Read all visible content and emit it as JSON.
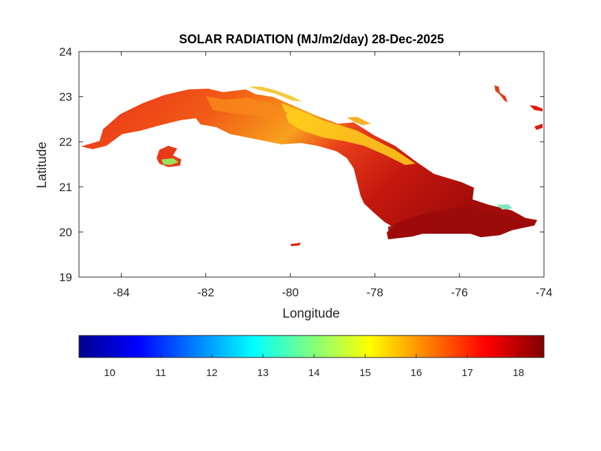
{
  "title": "SOLAR RADIATION (MJ/m2/day) 28-Dec-2025",
  "axes": {
    "xlabel": "Longitude",
    "ylabel": "Latitude",
    "xlim": [
      -85,
      -74
    ],
    "ylim": [
      19,
      24
    ],
    "xticks": [
      -84,
      -82,
      -80,
      -78,
      -76,
      -74
    ],
    "yticks": [
      19,
      20,
      21,
      22,
      23,
      24
    ]
  },
  "colorbar": {
    "colormap": "jet",
    "range": [
      9.4,
      18.5
    ],
    "ticks": [
      10,
      11,
      12,
      13,
      14,
      15,
      16,
      17,
      18
    ],
    "colors": [
      "#00008f",
      "#0000ff",
      "#00ffff",
      "#ffff00",
      "#ff0000",
      "#800000"
    ]
  },
  "map": {
    "region": "Cuba",
    "fill_colors": {
      "main": "#ee3a12",
      "dark": "#a20c0a",
      "bright": "#ffdd22"
    }
  }
}
